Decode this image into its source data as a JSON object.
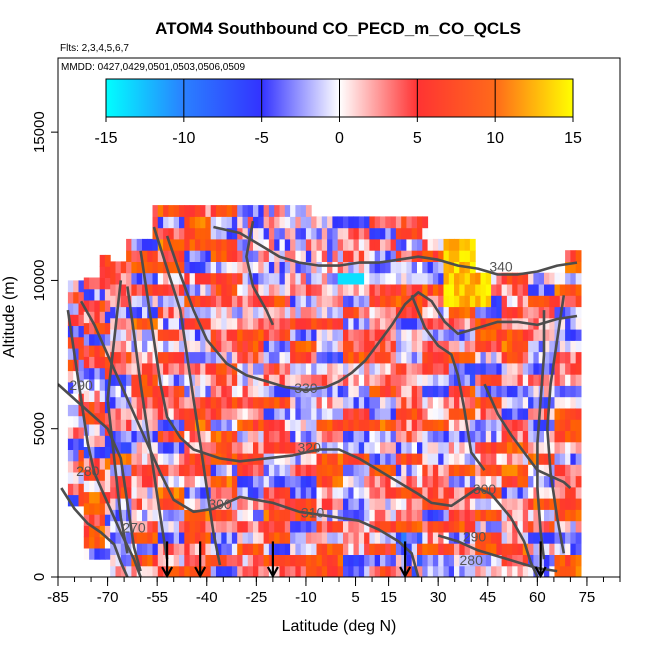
{
  "chart_data": {
    "type": "heatmap",
    "title": "ATOM4 Southbound CO_PECD_m_CO_QCLS",
    "flights_label": "Flts: 2,3,4,5,6,7",
    "dates_label": "MMDD: 0427,0429,0501,0503,0506,0509",
    "xlabel": "Latitude (deg N)",
    "ylabel": "Altitude (m)",
    "xlim": [
      -85,
      85
    ],
    "ylim": [
      0,
      17500
    ],
    "x_ticks": [
      -85,
      -70,
      -55,
      -40,
      -25,
      -10,
      5,
      15,
      30,
      45,
      60,
      75
    ],
    "y_ticks": [
      0,
      5000,
      10000,
      15000
    ],
    "colorbar": {
      "ticks": [
        -15,
        -10,
        -5,
        0,
        5,
        10,
        15
      ],
      "range": [
        -15,
        15
      ],
      "colors": [
        "#00ffff",
        "#3366ff",
        "#3333ff",
        "#ffffff",
        "#ff3333",
        "#ff6600",
        "#ffff00"
      ]
    },
    "contours": [
      {
        "level": "270",
        "label_lat": -62,
        "label_alt": 1500
      },
      {
        "level": "280",
        "label_lat": -76,
        "label_alt": 3400
      },
      {
        "level": "290",
        "label_lat": -78,
        "label_alt": 6300
      },
      {
        "level": "300",
        "label_lat": -36,
        "label_alt": 2300
      },
      {
        "level": "310",
        "label_lat": -8,
        "label_alt": 2000
      },
      {
        "level": "320",
        "label_lat": -9,
        "label_alt": 4200
      },
      {
        "level": "330",
        "label_lat": -10,
        "label_alt": 6200
      },
      {
        "level": "340",
        "label_lat": 49,
        "label_alt": 10300
      },
      {
        "level": "300",
        "label_lat": 44,
        "label_alt": 2800
      },
      {
        "level": "290",
        "label_lat": 41,
        "label_alt": 1200
      },
      {
        "level": "280",
        "label_lat": 40,
        "label_alt": 400
      }
    ],
    "flight_markers_lat": [
      -52,
      -42,
      -20,
      20,
      61
    ]
  }
}
